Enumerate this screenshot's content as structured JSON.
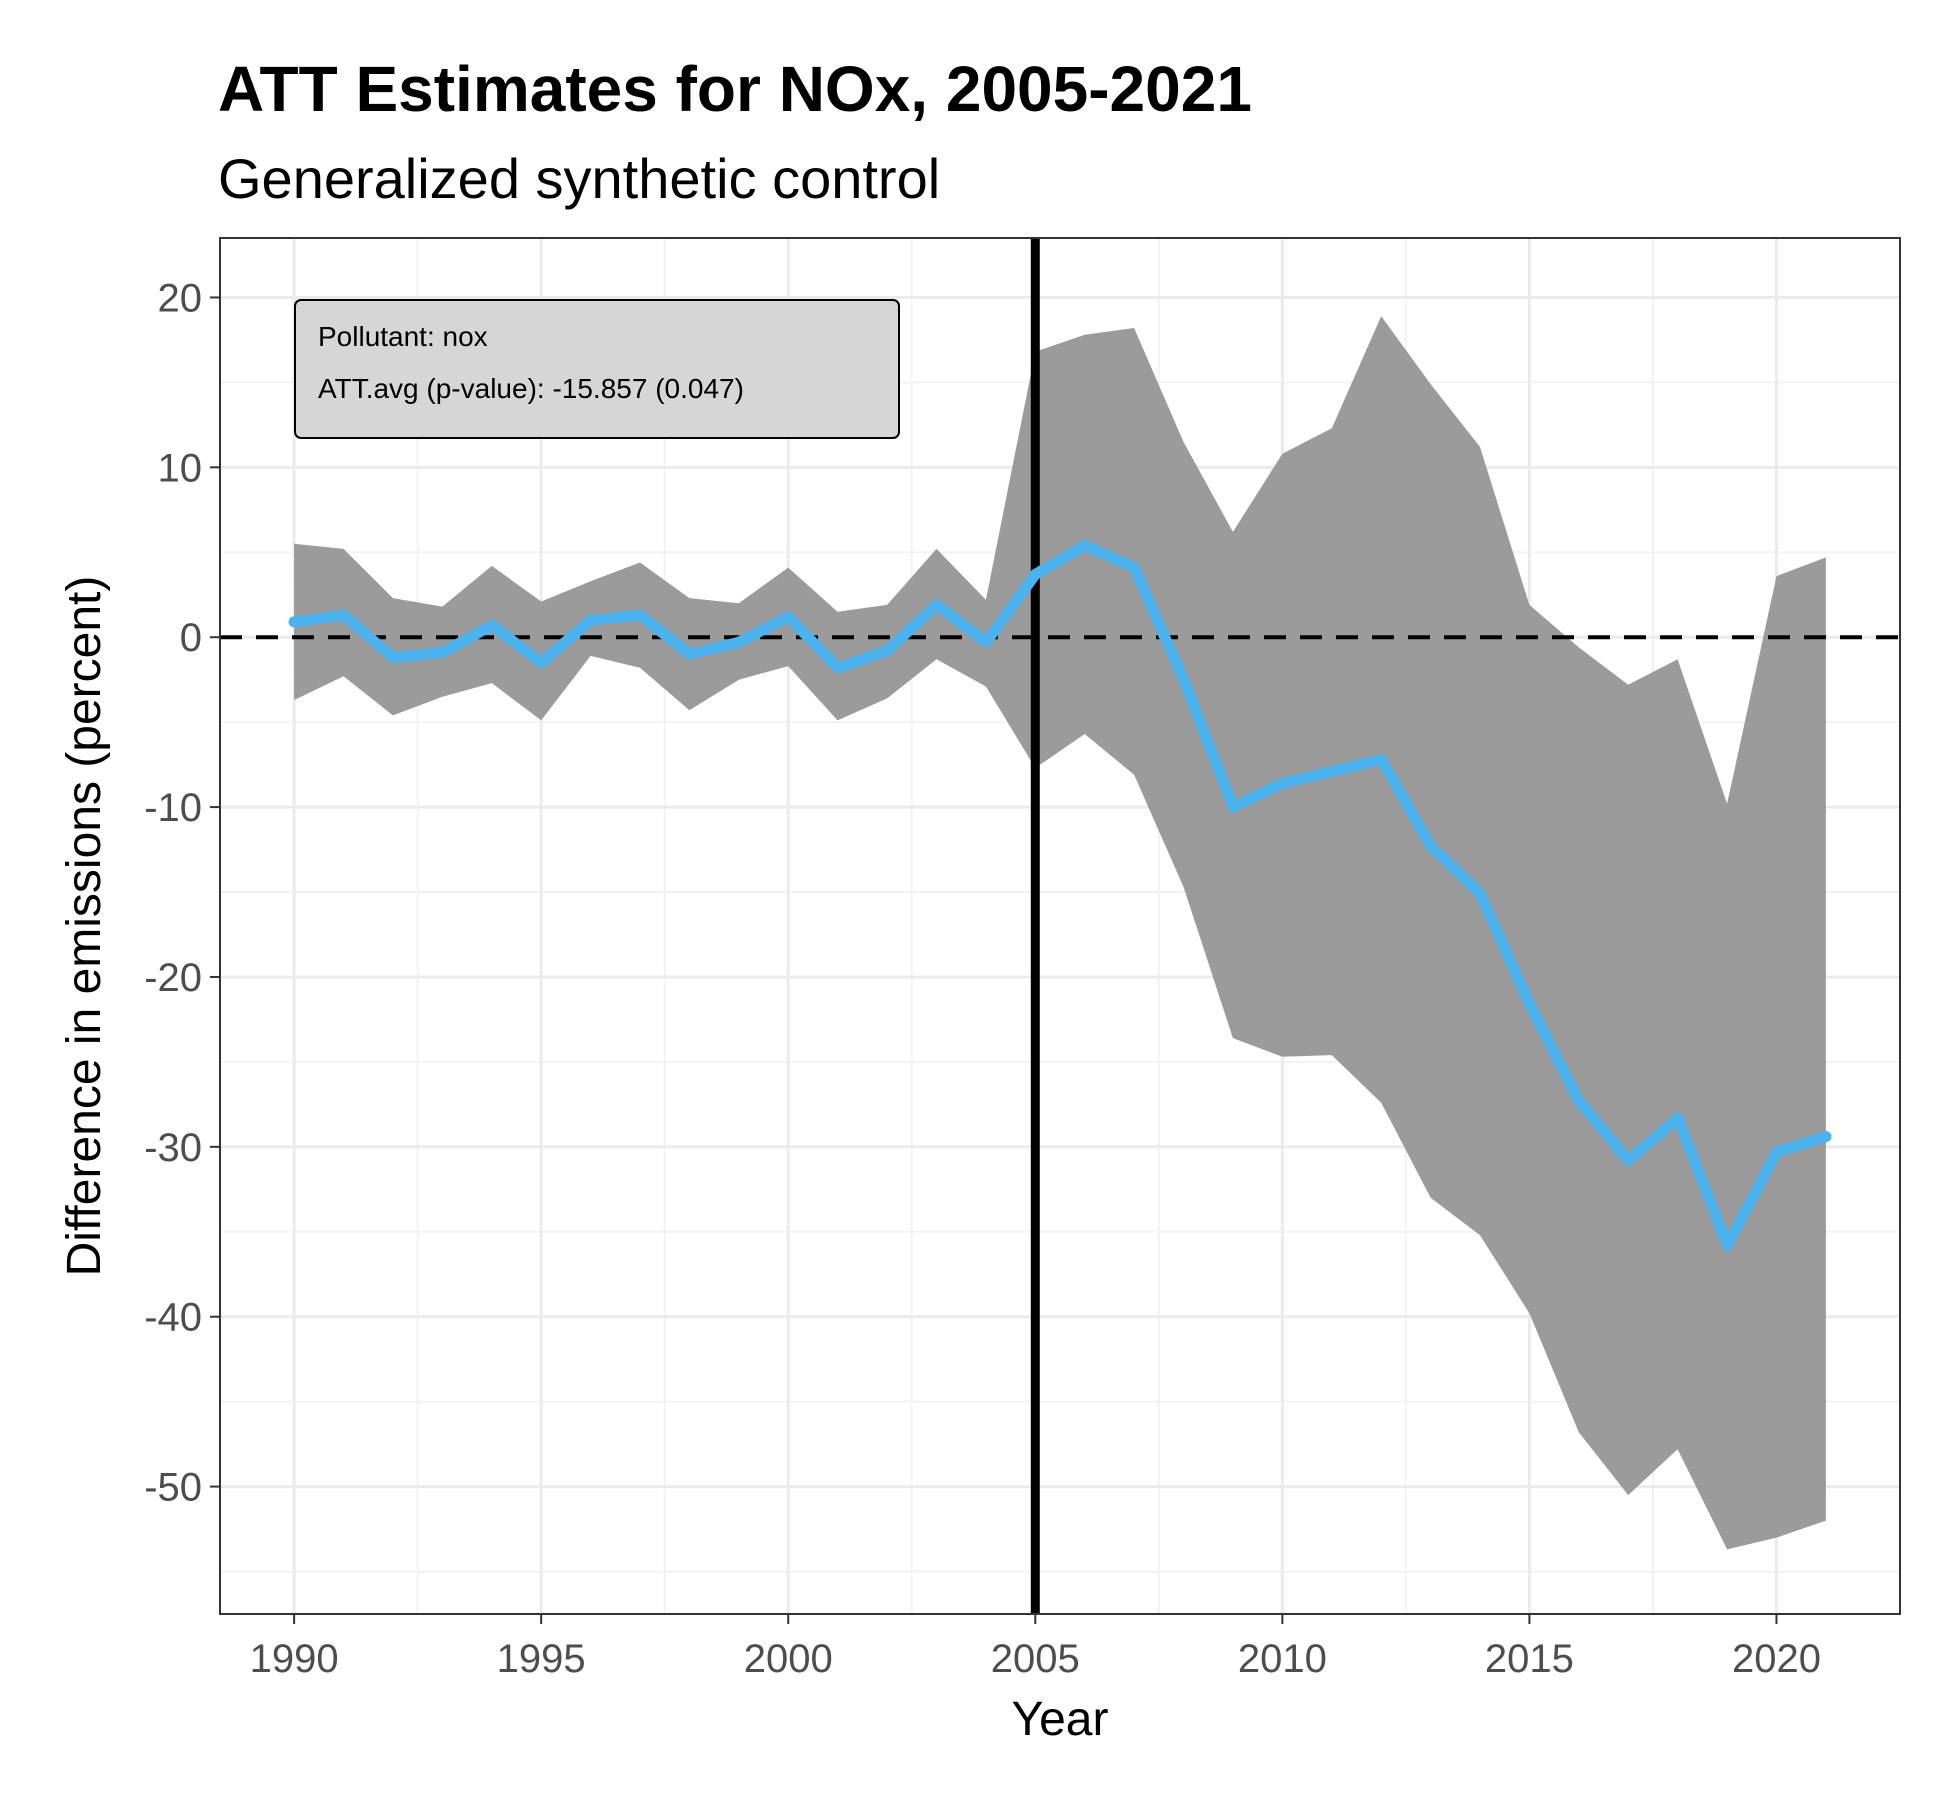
{
  "chart_data": {
    "type": "line",
    "title": "ATT Estimates for NOx, 2005-2021",
    "subtitle": "Generalized synthetic control",
    "xlabel": "Year",
    "ylabel": "Difference in emissions (percent)",
    "xlim": [
      1988.5,
      2022.5
    ],
    "ylim": [
      -57.5,
      23.5
    ],
    "x_ticks": [
      1990,
      1995,
      2000,
      2005,
      2010,
      2015,
      2020
    ],
    "x_tick_labels": [
      "1990",
      "1995",
      "2000",
      "2005",
      "2010",
      "2015",
      "2020"
    ],
    "y_ticks": [
      20,
      10,
      0,
      -10,
      -20,
      -30,
      -40,
      -50
    ],
    "y_tick_labels": [
      "20",
      "10",
      "0",
      "-10",
      "-20",
      "-30",
      "-40",
      "-50"
    ],
    "grid": true,
    "treatment_year": 2005,
    "reference_line_y": 0,
    "series": [
      {
        "x": [
          1990,
          1991,
          1992,
          1993,
          1994,
          1995,
          1996,
          1997,
          1998,
          1999,
          2000,
          2001,
          2002,
          2003,
          2004,
          2005,
          2006,
          2007,
          2008,
          2009,
          2010,
          2011,
          2012,
          2013,
          2014,
          2015,
          2016,
          2017,
          2018,
          2019,
          2020,
          2021
        ],
        "values": [
          0.9,
          1.3,
          -1.2,
          -0.9,
          0.7,
          -1.5,
          1.0,
          1.3,
          -1.0,
          -0.3,
          1.2,
          -1.8,
          -0.8,
          1.9,
          -0.3,
          3.7,
          5.4,
          4.1,
          -2.5,
          -10.0,
          -8.6,
          -7.9,
          -7.2,
          -12.3,
          -15.1,
          -21.6,
          -27.3,
          -30.8,
          -28.3,
          -35.8,
          -30.3,
          -29.4
        ],
        "lower": [
          -3.7,
          -2.3,
          -4.6,
          -3.5,
          -2.7,
          -4.9,
          -1.1,
          -1.8,
          -4.3,
          -2.5,
          -1.7,
          -4.9,
          -3.6,
          -1.3,
          -2.9,
          -7.7,
          -5.7,
          -8.1,
          -14.7,
          -23.6,
          -24.7,
          -24.6,
          -27.4,
          -33.0,
          -35.2,
          -39.8,
          -46.8,
          -50.5,
          -47.8,
          -53.7,
          -53.0,
          -52.0
        ],
        "upper": [
          5.5,
          5.2,
          2.3,
          1.8,
          4.2,
          2.1,
          3.3,
          4.4,
          2.3,
          2.0,
          4.1,
          1.5,
          1.9,
          5.2,
          2.2,
          16.8,
          17.8,
          18.2,
          11.5,
          6.2,
          10.8,
          12.3,
          18.9,
          14.9,
          11.2,
          1.9,
          -0.6,
          -2.8,
          -1.3,
          -9.8,
          3.6,
          4.7
        ],
        "line_color": "#4cb3ee",
        "band_color": "#9b9b9b"
      }
    ],
    "annotation": {
      "lines": [
        "Pollutant: nox",
        "ATT.avg (p-value): -15.857 (0.047)"
      ],
      "position": "top-left"
    }
  }
}
